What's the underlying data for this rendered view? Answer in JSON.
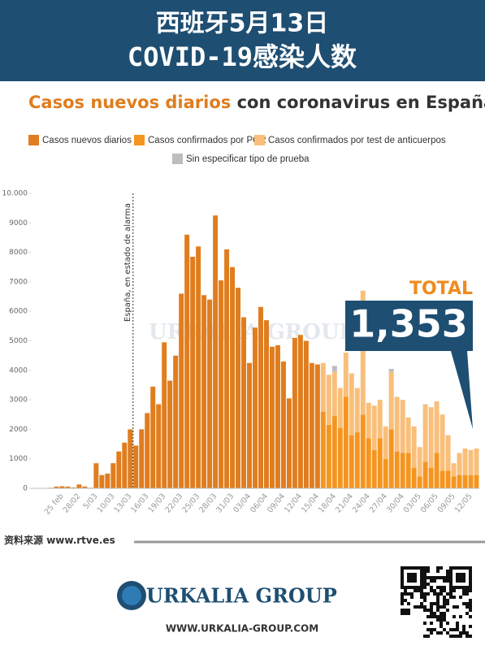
{
  "header": {
    "title": [
      "西班牙5月13日",
      "COVID-19感染人数"
    ]
  },
  "chart_data": {
    "type": "stacked_bar",
    "title": [
      "Casos nuevos diarios",
      "con coronavirus en España"
    ],
    "categories": [
      null,
      null,
      null,
      null,
      null,
      "25 feb",
      null,
      null,
      "28/02",
      null,
      null,
      "5/03",
      null,
      null,
      "10/03",
      null,
      null,
      "13/03",
      null,
      null,
      "16/03",
      null,
      null,
      "19/03",
      null,
      null,
      "22/03",
      null,
      null,
      "25/03",
      null,
      null,
      "28/03",
      null,
      null,
      "31/03",
      null,
      null,
      "03/04",
      null,
      null,
      "06/04",
      null,
      null,
      "09/04",
      null,
      null,
      "12/04",
      null,
      null,
      "15/04",
      null,
      null,
      "18/04",
      null,
      null,
      "21/04",
      null,
      null,
      "24/04",
      null,
      null,
      "27/04",
      null,
      null,
      "30/04",
      null,
      null,
      "03/05",
      null,
      null,
      "06/05",
      null,
      null,
      "09/05",
      null,
      null,
      "12/05",
      null
    ],
    "series": [
      {
        "name": "Casos nuevos diarios",
        "color": "#e07d1e",
        "values": [
          0,
          0,
          10,
          20,
          60,
          70,
          60,
          30,
          130,
          60,
          20,
          850,
          450,
          500,
          850,
          1250,
          1550,
          2000,
          1450,
          2000,
          2550,
          3450,
          2850,
          4950,
          3650,
          4500,
          6600,
          8600,
          7850,
          8200,
          6550,
          6400,
          9250,
          7050,
          8100,
          7500,
          6800,
          5800,
          4250,
          5450,
          6150,
          5700,
          4800,
          4850,
          4300,
          3050,
          5100,
          5200,
          5000,
          4250,
          4200,
          null,
          null,
          null,
          null,
          null,
          null,
          null,
          null,
          null,
          null,
          null,
          null,
          null,
          null,
          null,
          null,
          null,
          null,
          null,
          null,
          null,
          null,
          null,
          null,
          null,
          null,
          null,
          null
        ]
      },
      {
        "name": "Casos confirmados por PCR",
        "color": "#f5951f",
        "values": [
          null,
          null,
          null,
          null,
          null,
          null,
          null,
          null,
          null,
          null,
          null,
          null,
          null,
          null,
          null,
          null,
          null,
          null,
          null,
          null,
          null,
          null,
          null,
          null,
          null,
          null,
          null,
          null,
          null,
          null,
          null,
          null,
          null,
          null,
          null,
          null,
          null,
          null,
          null,
          null,
          null,
          null,
          null,
          null,
          null,
          null,
          null,
          null,
          null,
          null,
          null,
          2600,
          2150,
          2450,
          2050,
          3100,
          1800,
          1900,
          2500,
          1700,
          1300,
          1700,
          1000,
          2000,
          1250,
          1200,
          1200,
          700,
          400,
          900,
          700,
          1200,
          600,
          600,
          400,
          450,
          450,
          450,
          450
        ]
      },
      {
        "name": "Casos confirmados por test de anticuerpos",
        "color": "#f9bf7a",
        "values": [
          null,
          null,
          null,
          null,
          null,
          null,
          null,
          null,
          null,
          null,
          null,
          null,
          null,
          null,
          null,
          null,
          null,
          null,
          null,
          null,
          null,
          null,
          null,
          null,
          null,
          null,
          null,
          null,
          null,
          null,
          null,
          null,
          null,
          null,
          null,
          null,
          null,
          null,
          null,
          null,
          null,
          null,
          null,
          null,
          null,
          null,
          null,
          null,
          null,
          null,
          null,
          1650,
          1700,
          1500,
          1350,
          1500,
          2100,
          1500,
          4200,
          1200,
          1500,
          1300,
          1100,
          1950,
          1850,
          1800,
          1200,
          1400,
          1000,
          1950,
          2050,
          1750,
          1900,
          1200,
          450,
          750,
          900,
          850,
          900
        ]
      },
      {
        "name": "Sin especificar tipo de prueba",
        "color": "#bdbdbd",
        "values": [
          null,
          null,
          null,
          null,
          null,
          null,
          null,
          null,
          null,
          null,
          null,
          null,
          null,
          null,
          null,
          null,
          null,
          null,
          null,
          null,
          null,
          null,
          null,
          null,
          null,
          null,
          null,
          null,
          null,
          null,
          null,
          null,
          null,
          null,
          null,
          null,
          null,
          null,
          null,
          null,
          null,
          null,
          null,
          null,
          null,
          null,
          null,
          null,
          null,
          null,
          null,
          null,
          null,
          200,
          null,
          null,
          null,
          null,
          null,
          null,
          null,
          null,
          null,
          100,
          null,
          null,
          null,
          null,
          null,
          null,
          null,
          null,
          null,
          null,
          null,
          null,
          null,
          null,
          null
        ]
      }
    ],
    "ylim": [
      0,
      10000
    ],
    "yticks": [
      0,
      1000,
      2000,
      3000,
      4000,
      5000,
      6000,
      7000,
      8000,
      9000,
      {
        "value": 10000,
        "label": "10.000"
      }
    ],
    "grid": false,
    "annotations": [
      "España, en estado de alarma"
    ],
    "total": {
      "label": "TOTAL",
      "value": "1,353"
    }
  },
  "watermark": "URKALIA GROUP",
  "source": {
    "label": "资料来源",
    "url": "www.rtve.es"
  },
  "footer": {
    "brand": "URKALIA GROUP",
    "url": "WWW.URKALIA-GROUP.COM"
  }
}
